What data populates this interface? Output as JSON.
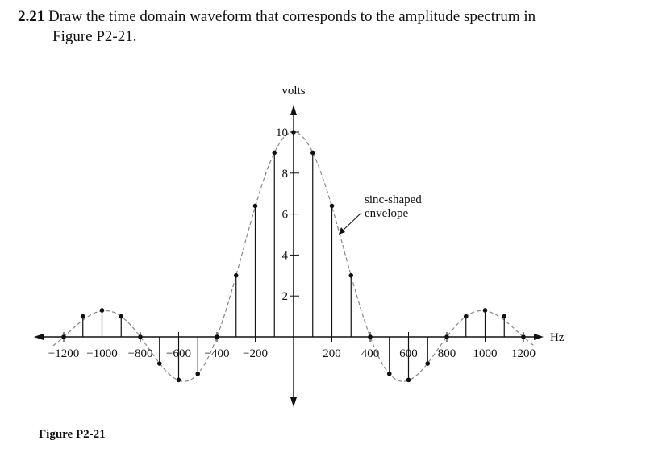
{
  "problem": {
    "number": "2.21",
    "text_line1": "Draw the time domain waveform that corresponds to the amplitude spectrum in",
    "text_line2": "Figure P2-21."
  },
  "caption": "Figure P2-21",
  "chart_data": {
    "type": "stem",
    "ylabel": "volts",
    "xlabel": "Hz",
    "x_ticks": [
      -1200,
      -1000,
      -800,
      -600,
      -400,
      -200,
      200,
      400,
      600,
      800,
      1000,
      1200
    ],
    "x_tick_labels": [
      "−1200",
      "−1000",
      "−800",
      "−600",
      "−400",
      "−200",
      "200",
      "400",
      "600",
      "800",
      "1000",
      "1200"
    ],
    "y_ticks": [
      2,
      4,
      6,
      8,
      10
    ],
    "y_tick_labels": [
      "2",
      "4",
      "6",
      "8",
      "10"
    ],
    "x": [
      -1200,
      -1100,
      -1000,
      -900,
      -800,
      -700,
      -600,
      -500,
      -400,
      -300,
      -200,
      -100,
      0,
      100,
      200,
      300,
      400,
      500,
      600,
      700,
      800,
      900,
      1000,
      1100,
      1200
    ],
    "y": [
      0,
      1.0,
      1.3,
      1.0,
      0,
      -1.3,
      -2.1,
      -1.8,
      0,
      3.0,
      6.4,
      9.0,
      10,
      9.0,
      6.4,
      3.0,
      0,
      -1.8,
      -2.1,
      -1.3,
      0,
      1.0,
      1.3,
      1.0,
      0
    ],
    "envelope_label": "sinc-shaped\nenvelope",
    "xlim": [
      -1250,
      1250
    ],
    "ylim": [
      -3.4,
      11.2
    ]
  }
}
